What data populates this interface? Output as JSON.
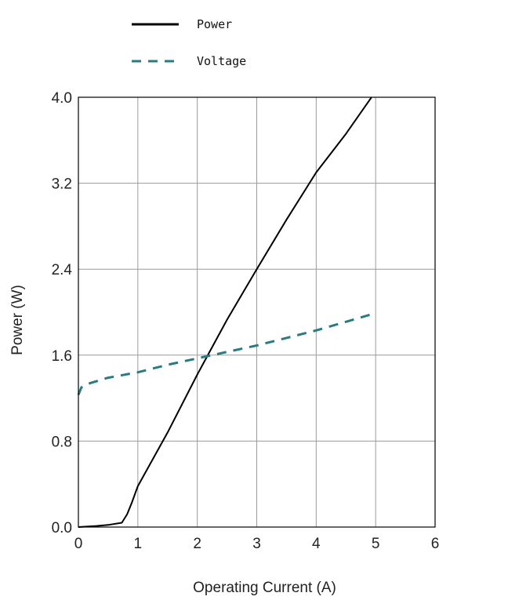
{
  "chart_data": {
    "type": "line",
    "xlabel": "Operating Current (A)",
    "ylabel": "Power (W)",
    "xlim": [
      0,
      6
    ],
    "ylim": [
      0,
      4.0
    ],
    "x_ticks": [
      "0",
      "1",
      "2",
      "3",
      "4",
      "5",
      "6"
    ],
    "y_ticks": [
      "0.0",
      "0.8",
      "1.6",
      "2.4",
      "3.2",
      "4.0"
    ],
    "grid": true,
    "legend_position": "top-left",
    "series": [
      {
        "name": "Power",
        "style": "solid",
        "color": "#000000",
        "x": [
          0,
          0.3,
          0.5,
          0.73,
          0.82,
          0.9,
          1.0,
          1.5,
          2.0,
          2.5,
          3.0,
          3.5,
          4.0,
          4.5,
          4.93
        ],
        "y": [
          0.0,
          0.01,
          0.02,
          0.04,
          0.12,
          0.23,
          0.38,
          0.88,
          1.42,
          1.93,
          2.4,
          2.86,
          3.3,
          3.66,
          4.0
        ]
      },
      {
        "name": "Voltage",
        "style": "dashed",
        "color": "#2a7b80",
        "x": [
          0,
          0.05,
          0.2,
          0.5,
          1.0,
          1.5,
          2.0,
          2.5,
          3.0,
          3.5,
          4.0,
          4.5,
          4.93
        ],
        "y": [
          1.23,
          1.3,
          1.34,
          1.39,
          1.44,
          1.51,
          1.57,
          1.63,
          1.69,
          1.76,
          1.83,
          1.91,
          1.98
        ]
      }
    ]
  }
}
